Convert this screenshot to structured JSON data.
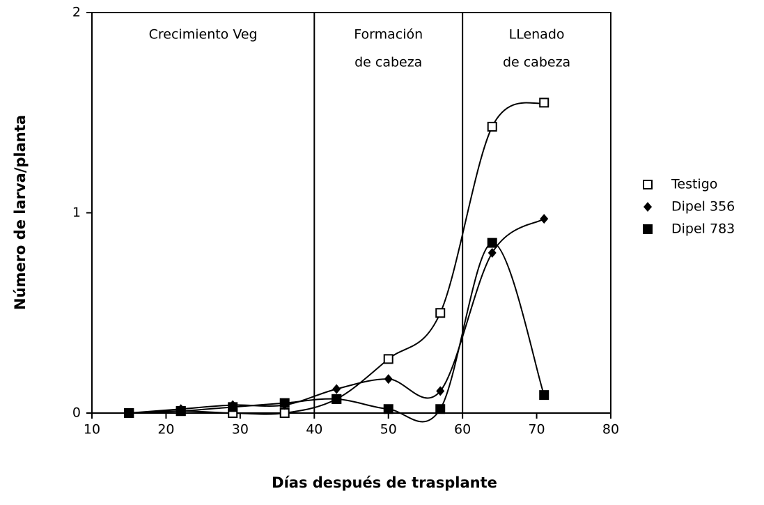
{
  "chart_data": {
    "type": "line",
    "x_label": "Días después de trasplante",
    "y_label": "Número de larva/planta",
    "x": [
      15,
      22,
      29,
      36,
      43,
      50,
      57,
      64,
      71
    ],
    "series": [
      {
        "name": "Testigo",
        "color": "#000000",
        "marker": "square-open",
        "values": [
          0,
          0.01,
          0,
          0,
          0.07,
          0.27,
          0.5,
          1.43,
          1.55
        ]
      },
      {
        "name": "Dipel 356",
        "color": "#000000",
        "marker": "diamond",
        "values": [
          0,
          0.02,
          0.04,
          0.04,
          0.12,
          0.17,
          0.11,
          0.8,
          0.97
        ]
      },
      {
        "name": "Dipel 783",
        "color": "#000000",
        "marker": "square",
        "values": [
          0,
          0.01,
          0.03,
          0.05,
          0.07,
          0.02,
          0.02,
          0.85,
          0.09
        ]
      }
    ],
    "dividers": [
      40,
      60
    ],
    "phases": [
      [
        "Crecimiento Veg"
      ],
      [
        "Formación",
        "de cabeza"
      ],
      [
        "LLenado",
        "de cabeza"
      ]
    ],
    "xlim": [
      10,
      80
    ],
    "xticks": [
      10,
      20,
      30,
      40,
      50,
      60,
      70,
      80
    ],
    "ylim": [
      0,
      2
    ],
    "yticks": [
      0,
      1,
      2
    ],
    "legend": "right"
  }
}
